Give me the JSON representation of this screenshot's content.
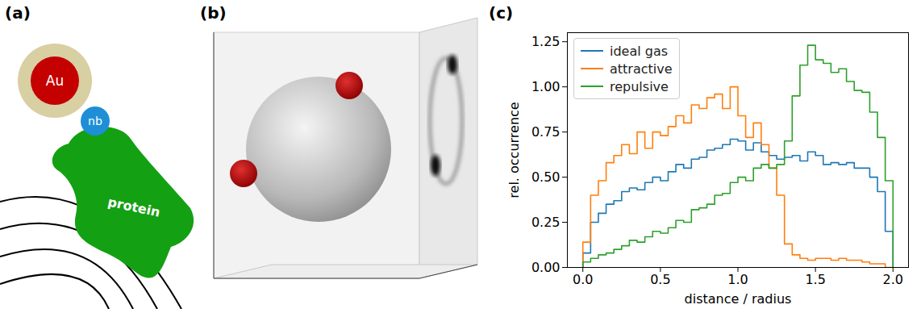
{
  "figure": {
    "panel_labels": [
      "(a)",
      "(b)",
      "(c)"
    ],
    "diagram_a": {
      "labels": [
        "Au",
        "nb",
        "protein"
      ]
    }
  },
  "chart_data": {
    "type": "histogram",
    "x_label": "distance / radius",
    "y_label": "rel. occurrence",
    "bins": [
      0,
      0.05,
      0.1,
      0.15,
      0.2,
      0.25,
      0.3,
      0.35,
      0.4,
      0.45,
      0.5,
      0.55,
      0.6,
      0.65,
      0.7,
      0.75,
      0.8,
      0.85,
      0.9,
      0.95,
      1.0,
      1.05,
      1.1,
      1.15,
      1.2,
      1.25,
      1.3,
      1.35,
      1.4,
      1.45,
      1.5,
      1.55,
      1.6,
      1.65,
      1.7,
      1.75,
      1.8,
      1.85,
      1.9,
      1.95,
      2.0
    ],
    "series": [
      {
        "name": "ideal gas",
        "color": "#1f77b4",
        "values": [
          0.08,
          0.25,
          0.3,
          0.35,
          0.37,
          0.42,
          0.44,
          0.43,
          0.47,
          0.5,
          0.48,
          0.53,
          0.57,
          0.55,
          0.6,
          0.61,
          0.65,
          0.66,
          0.68,
          0.71,
          0.7,
          0.65,
          0.69,
          0.64,
          0.62,
          0.6,
          0.61,
          0.62,
          0.59,
          0.64,
          0.62,
          0.57,
          0.58,
          0.57,
          0.58,
          0.55,
          0.55,
          0.5,
          0.42,
          0.2
        ]
      },
      {
        "name": "attractive",
        "color": "#ff7f0e",
        "values": [
          0.14,
          0.4,
          0.48,
          0.58,
          0.62,
          0.68,
          0.63,
          0.75,
          0.66,
          0.75,
          0.73,
          0.78,
          0.84,
          0.8,
          0.9,
          0.88,
          0.94,
          0.96,
          0.88,
          1.0,
          0.84,
          0.72,
          0.8,
          0.68,
          0.55,
          0.4,
          0.13,
          0.07,
          0.05,
          0.04,
          0.05,
          0.05,
          0.04,
          0.05,
          0.04,
          0.04,
          0.03,
          0.02,
          0.02,
          0.0
        ]
      },
      {
        "name": "repulsive",
        "color": "#2ca02c",
        "values": [
          0.03,
          0.05,
          0.07,
          0.08,
          0.1,
          0.12,
          0.15,
          0.14,
          0.17,
          0.2,
          0.19,
          0.22,
          0.26,
          0.25,
          0.32,
          0.33,
          0.35,
          0.4,
          0.41,
          0.47,
          0.5,
          0.48,
          0.55,
          0.57,
          0.55,
          0.57,
          0.7,
          0.95,
          1.12,
          1.23,
          1.15,
          1.13,
          1.08,
          1.1,
          1.03,
          0.98,
          0.97,
          0.86,
          0.72,
          0.48
        ]
      }
    ],
    "xlim": [
      -0.1,
      2.1
    ],
    "ylim": [
      0,
      1.3
    ],
    "xticks": [
      {
        "value": 0,
        "label": "0.0"
      },
      0.5,
      {
        "value": 1,
        "label": "1.0"
      },
      1.5,
      {
        "value": 2,
        "label": "2.0"
      }
    ],
    "yticks": [
      {
        "value": 0,
        "label": "0.00"
      },
      0.25,
      {
        "value": 0.5,
        "label": "0.50"
      },
      0.75,
      {
        "value": 1,
        "label": "1.00"
      },
      1.25
    ],
    "legend": "upper left"
  }
}
